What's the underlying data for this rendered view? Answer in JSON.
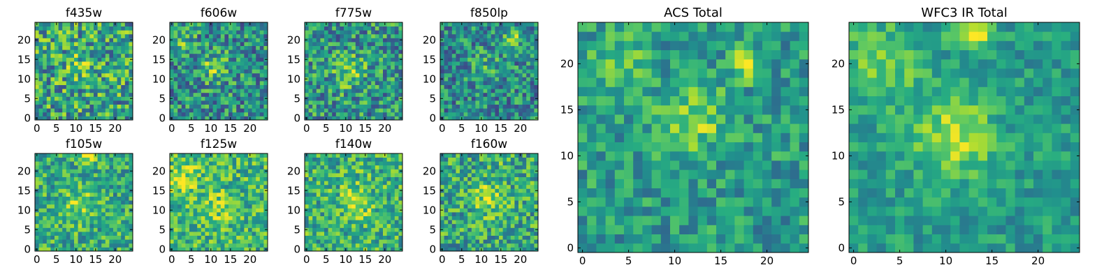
{
  "figure": {
    "background": "#ffffff",
    "colormap": "viridis",
    "image_grid": 25,
    "seed_note": ""
  },
  "chart_data": [
    {
      "type": "heatmap",
      "title": "f435w",
      "xticks": [
        0,
        5,
        10,
        15,
        20
      ],
      "yticks": [
        0,
        5,
        10,
        15,
        20
      ],
      "xlim": [
        -0.5,
        24.5
      ],
      "ylim": [
        -0.5,
        24.5
      ],
      "grid": false,
      "seed": 11,
      "mean": 0.58,
      "noise": 0.34,
      "peaks": [
        {
          "x": 12,
          "y": 14,
          "a": 0.15,
          "s": 3
        }
      ]
    },
    {
      "type": "heatmap",
      "title": "f606w",
      "xticks": [
        0,
        5,
        10,
        15,
        20
      ],
      "yticks": [
        0,
        5,
        10,
        15,
        20
      ],
      "xlim": [
        -0.5,
        24.5
      ],
      "ylim": [
        -0.5,
        24.5
      ],
      "grid": false,
      "seed": 23,
      "mean": 0.5,
      "noise": 0.3,
      "peaks": [
        {
          "x": 11,
          "y": 13,
          "a": 0.3,
          "s": 2.5
        },
        {
          "x": 3,
          "y": 20,
          "a": 0.2,
          "s": 2
        }
      ]
    },
    {
      "type": "heatmap",
      "title": "f775w",
      "xticks": [
        0,
        5,
        10,
        15,
        20
      ],
      "yticks": [
        0,
        5,
        10,
        15,
        20
      ],
      "xlim": [
        -0.5,
        24.5
      ],
      "ylim": [
        -0.5,
        24.5
      ],
      "grid": false,
      "seed": 37,
      "mean": 0.52,
      "noise": 0.3,
      "peaks": [
        {
          "x": 11,
          "y": 12,
          "a": 0.25,
          "s": 3
        }
      ]
    },
    {
      "type": "heatmap",
      "title": "f850lp",
      "xticks": [
        0,
        5,
        10,
        15,
        20
      ],
      "yticks": [
        0,
        5,
        10,
        15,
        20
      ],
      "xlim": [
        -0.5,
        24.5
      ],
      "ylim": [
        -0.5,
        24.5
      ],
      "grid": false,
      "seed": 51,
      "mean": 0.48,
      "noise": 0.28,
      "peaks": [
        {
          "x": 18,
          "y": 20,
          "a": 0.4,
          "s": 1.5
        },
        {
          "x": 12,
          "y": 13,
          "a": 0.15,
          "s": 3
        }
      ]
    },
    {
      "type": "heatmap",
      "title": "f105w",
      "xticks": [
        0,
        5,
        10,
        15,
        20
      ],
      "yticks": [
        0,
        5,
        10,
        15,
        20
      ],
      "xlim": [
        -0.5,
        24.5
      ],
      "ylim": [
        -0.5,
        24.5
      ],
      "grid": false,
      "seed": 63,
      "mean": 0.62,
      "noise": 0.25,
      "peaks": [
        {
          "x": 11,
          "y": 11,
          "a": 0.25,
          "s": 3
        },
        {
          "x": 13,
          "y": 24,
          "a": 0.3,
          "s": 1.5
        }
      ]
    },
    {
      "type": "heatmap",
      "title": "f125w",
      "xticks": [
        0,
        5,
        10,
        15,
        20
      ],
      "yticks": [
        0,
        5,
        10,
        15,
        20
      ],
      "xlim": [
        -0.5,
        24.5
      ],
      "ylim": [
        -0.5,
        24.5
      ],
      "grid": false,
      "seed": 77,
      "mean": 0.66,
      "noise": 0.25,
      "peaks": [
        {
          "x": 3,
          "y": 18,
          "a": 0.2,
          "s": 3
        },
        {
          "x": 12,
          "y": 11,
          "a": 0.15,
          "s": 3
        }
      ]
    },
    {
      "type": "heatmap",
      "title": "f140w",
      "xticks": [
        0,
        5,
        10,
        15,
        20
      ],
      "yticks": [
        0,
        5,
        10,
        15,
        20
      ],
      "xlim": [
        -0.5,
        24.5
      ],
      "ylim": [
        -0.5,
        24.5
      ],
      "grid": false,
      "seed": 89,
      "mean": 0.64,
      "noise": 0.26,
      "peaks": [
        {
          "x": 13,
          "y": 12,
          "a": 0.25,
          "s": 3
        }
      ]
    },
    {
      "type": "heatmap",
      "title": "f160w",
      "xticks": [
        0,
        5,
        10,
        15,
        20
      ],
      "yticks": [
        0,
        5,
        10,
        15,
        20
      ],
      "xlim": [
        -0.5,
        24.5
      ],
      "ylim": [
        -0.5,
        24.5
      ],
      "grid": false,
      "seed": 97,
      "mean": 0.6,
      "noise": 0.27,
      "peaks": [
        {
          "x": 12,
          "y": 13,
          "a": 0.25,
          "s": 3
        },
        {
          "x": 14,
          "y": 24,
          "a": 0.2,
          "s": 1.5
        }
      ]
    },
    {
      "type": "heatmap",
      "title": "ACS Total",
      "xticks": [
        0,
        5,
        10,
        15,
        20
      ],
      "yticks": [
        0,
        5,
        10,
        15,
        20
      ],
      "xlim": [
        -0.5,
        24.5
      ],
      "ylim": [
        -0.5,
        24.5
      ],
      "grid": false,
      "seed": 131,
      "mean": 0.55,
      "noise": 0.2,
      "peaks": [
        {
          "x": 12,
          "y": 14,
          "a": 0.3,
          "s": 2.5
        },
        {
          "x": 18,
          "y": 20,
          "a": 0.4,
          "s": 1.2
        },
        {
          "x": 4,
          "y": 20,
          "a": 0.2,
          "s": 2
        }
      ]
    },
    {
      "type": "heatmap",
      "title": "WFC3 IR Total",
      "xticks": [
        0,
        5,
        10,
        15,
        20
      ],
      "yticks": [
        0,
        5,
        10,
        15,
        20
      ],
      "xlim": [
        -0.5,
        24.5
      ],
      "ylim": [
        -0.5,
        24.5
      ],
      "grid": false,
      "seed": 173,
      "mean": 0.55,
      "noise": 0.15,
      "peaks": [
        {
          "x": 11,
          "y": 12,
          "a": 0.35,
          "s": 3
        },
        {
          "x": 13,
          "y": 24,
          "a": 0.45,
          "s": 1.5
        },
        {
          "x": 3,
          "y": 20,
          "a": 0.25,
          "s": 3
        }
      ]
    }
  ]
}
